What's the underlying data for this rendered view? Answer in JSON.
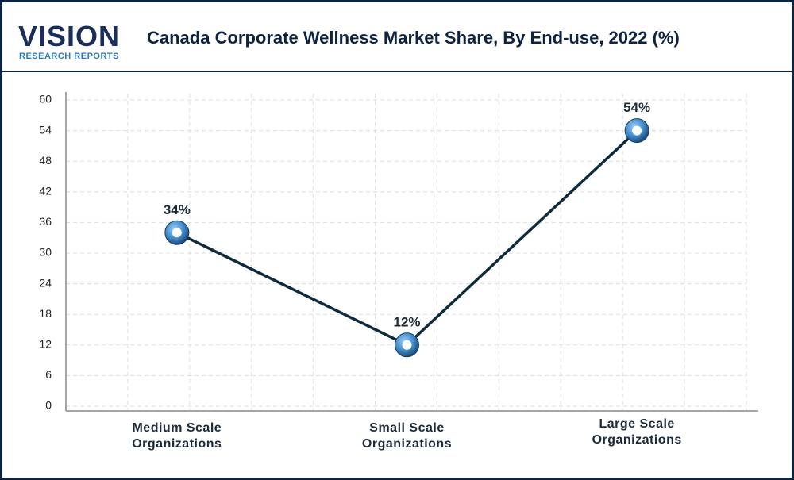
{
  "logo": {
    "name": "VISION",
    "tagline": "RESEARCH REPORTS"
  },
  "chart_data": {
    "type": "line",
    "title": "Canada Corporate Wellness Market Share, By End-use, 2022 (%)",
    "categories": [
      "Medium Scale Organizations",
      "Small Scale Organizations",
      "Large Scale Organizations"
    ],
    "series": [
      {
        "color": "#0d2b3e",
        "values": [
          34,
          12,
          54
        ],
        "value_labels": [
          "34%",
          "12%",
          "54%"
        ]
      }
    ],
    "ylim": [
      0,
      60
    ],
    "yticks": [
      0,
      6,
      12,
      18,
      24,
      30,
      36,
      42,
      48,
      54,
      60
    ],
    "grid": true
  }
}
